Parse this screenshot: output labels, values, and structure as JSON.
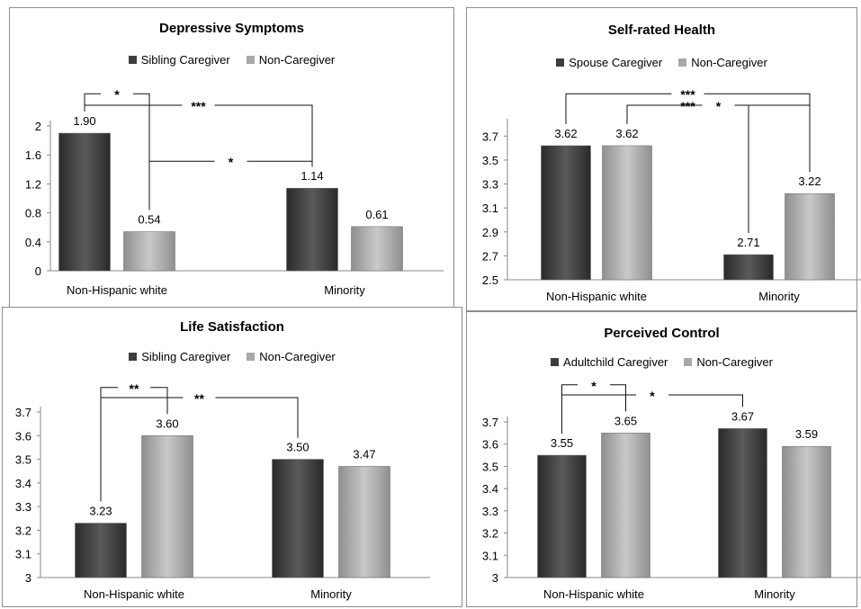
{
  "colors": {
    "caregiver": "#3d3d3d",
    "noncaregiver": "#a8a8a8"
  },
  "chart_data": [
    {
      "type": "bar",
      "title": "Depressive Symptoms",
      "categories": [
        "Non-Hispanic white",
        "Minority"
      ],
      "series": [
        {
          "name": "Sibling Caregiver",
          "values": [
            1.9,
            1.14
          ]
        },
        {
          "name": "Non-Caregiver",
          "values": [
            0.54,
            0.61
          ]
        }
      ],
      "value_labels": [
        [
          "1.90",
          "1.14"
        ],
        [
          "0.54",
          "0.61"
        ]
      ],
      "ylim": [
        0,
        2
      ],
      "yticks": [
        "0",
        "0.4",
        "0.8",
        "1.2",
        "1.6",
        "2"
      ],
      "ytick_values": [
        0,
        0.4,
        0.8,
        1.2,
        1.6,
        2
      ],
      "grid": false,
      "legend": "top-center",
      "significance": [
        {
          "label": "***",
          "from": [
            0,
            0
          ],
          "to": [
            1,
            0
          ],
          "level": 1
        },
        {
          "label": "*",
          "from": [
            0,
            0
          ],
          "to": [
            0,
            1
          ],
          "level": 2
        },
        {
          "label": "*",
          "from": [
            1,
            0
          ],
          "to": [
            0,
            1
          ],
          "level": 0
        }
      ]
    },
    {
      "type": "bar",
      "title": "Self-rated Health",
      "categories": [
        "Non-Hispanic white",
        "Minority"
      ],
      "series": [
        {
          "name": "Spouse Caregiver",
          "values": [
            3.62,
            2.71
          ]
        },
        {
          "name": "Non-Caregiver",
          "values": [
            3.62,
            3.22
          ]
        }
      ],
      "value_labels": [
        [
          "3.62",
          "2.71"
        ],
        [
          "3.62",
          "3.22"
        ]
      ],
      "ylim": [
        2.5,
        3.8
      ],
      "yticks": [
        "2.5",
        "2.7",
        "2.9",
        "3.1",
        "3.3",
        "3.5",
        "3.7"
      ],
      "ytick_values": [
        2.5,
        2.7,
        2.9,
        3.1,
        3.3,
        3.5,
        3.7
      ],
      "grid": false,
      "legend": "top-center",
      "significance": [
        {
          "label": "***",
          "from": [
            0,
            0
          ],
          "to": [
            1,
            1
          ],
          "level": 2
        },
        {
          "label": "***",
          "from": [
            1,
            0
          ],
          "to": [
            0,
            1
          ],
          "level": 1
        },
        {
          "label": "*",
          "from": [
            0,
            1
          ],
          "to": [
            1,
            1
          ],
          "level": 1
        }
      ]
    },
    {
      "type": "bar",
      "title": "Life Satisfaction",
      "categories": [
        "Non-Hispanic white",
        "Minority"
      ],
      "series": [
        {
          "name": "Sibling Caregiver",
          "values": [
            3.23,
            3.5
          ]
        },
        {
          "name": "Non-Caregiver",
          "values": [
            3.6,
            3.47
          ]
        }
      ],
      "value_labels": [
        [
          "3.23",
          "3.50"
        ],
        [
          "3.60",
          "3.47"
        ]
      ],
      "ylim": [
        3,
        3.7
      ],
      "yticks": [
        "3",
        "3.1",
        "3.2",
        "3.3",
        "3.4",
        "3.5",
        "3.6",
        "3.7"
      ],
      "ytick_values": [
        3,
        3.1,
        3.2,
        3.3,
        3.4,
        3.5,
        3.6,
        3.7
      ],
      "grid": false,
      "legend": "top-center",
      "significance": [
        {
          "label": "**",
          "from": [
            0,
            0
          ],
          "to": [
            1,
            0
          ],
          "level": 1
        },
        {
          "label": "**",
          "from": [
            0,
            0
          ],
          "to": [
            0,
            1
          ],
          "level": 2
        }
      ]
    },
    {
      "type": "bar",
      "title": "Perceived Control",
      "categories": [
        "Non-Hispanic white",
        "Minority"
      ],
      "series": [
        {
          "name": "Adultchild Caregiver",
          "values": [
            3.55,
            3.67
          ]
        },
        {
          "name": "Non-Caregiver",
          "values": [
            3.65,
            3.59
          ]
        }
      ],
      "value_labels": [
        [
          "3.55",
          "3.67"
        ],
        [
          "3.65",
          "3.59"
        ]
      ],
      "ylim": [
        3,
        3.7
      ],
      "yticks": [
        "3",
        "3.1",
        "3.2",
        "3.3",
        "3.4",
        "3.5",
        "3.6",
        "3.7"
      ],
      "ytick_values": [
        3,
        3.1,
        3.2,
        3.3,
        3.4,
        3.5,
        3.6,
        3.7
      ],
      "grid": false,
      "legend": "top-center",
      "significance": [
        {
          "label": "*",
          "from": [
            0,
            0
          ],
          "to": [
            1,
            0
          ],
          "level": 1
        },
        {
          "label": "*",
          "from": [
            0,
            0
          ],
          "to": [
            0,
            1
          ],
          "level": 2
        }
      ]
    }
  ]
}
